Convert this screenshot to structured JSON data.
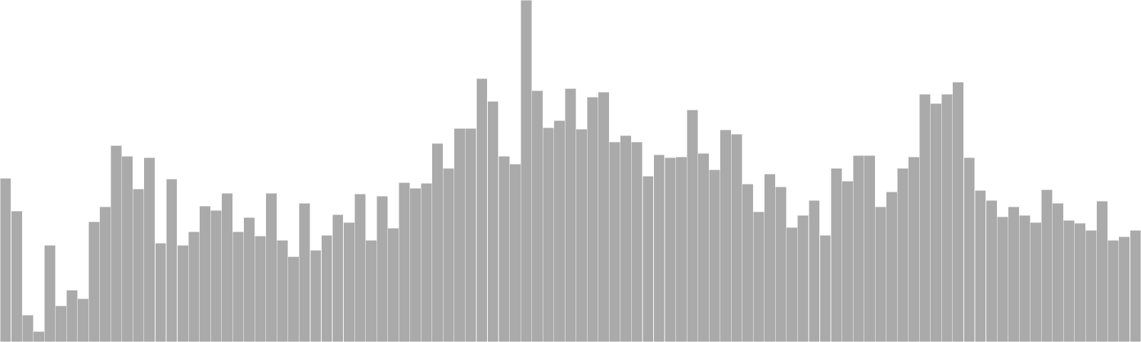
{
  "chart_data": {
    "type": "bar",
    "title": "",
    "xlabel": "",
    "ylabel": "",
    "ylim": [
      0,
      480
    ],
    "grid": false,
    "legend": "none",
    "bar_color": "#aaaaaa",
    "bar_edge_color": "#ffffff",
    "values": [
      230,
      184,
      38,
      15,
      136,
      51,
      73,
      61,
      169,
      190,
      276,
      261,
      215,
      259,
      139,
      229,
      136,
      155,
      191,
      185,
      209,
      155,
      175,
      149,
      209,
      143,
      120,
      195,
      129,
      150,
      179,
      168,
      208,
      143,
      205,
      160,
      224,
      216,
      223,
      279,
      244,
      300,
      300,
      370,
      338,
      261,
      250,
      480,
      353,
      301,
      311,
      356,
      299,
      344,
      351,
      281,
      290,
      281,
      233,
      263,
      259,
      260,
      326,
      265,
      242,
      298,
      292,
      222,
      183,
      236,
      218,
      161,
      178,
      199,
      150,
      244,
      226,
      262,
      262,
      190,
      211,
      244,
      260,
      348,
      335,
      348,
      365,
      259,
      213,
      199,
      176,
      190,
      178,
      168,
      214,
      195,
      171,
      167,
      157,
      198,
      143,
      148,
      157
    ]
  }
}
